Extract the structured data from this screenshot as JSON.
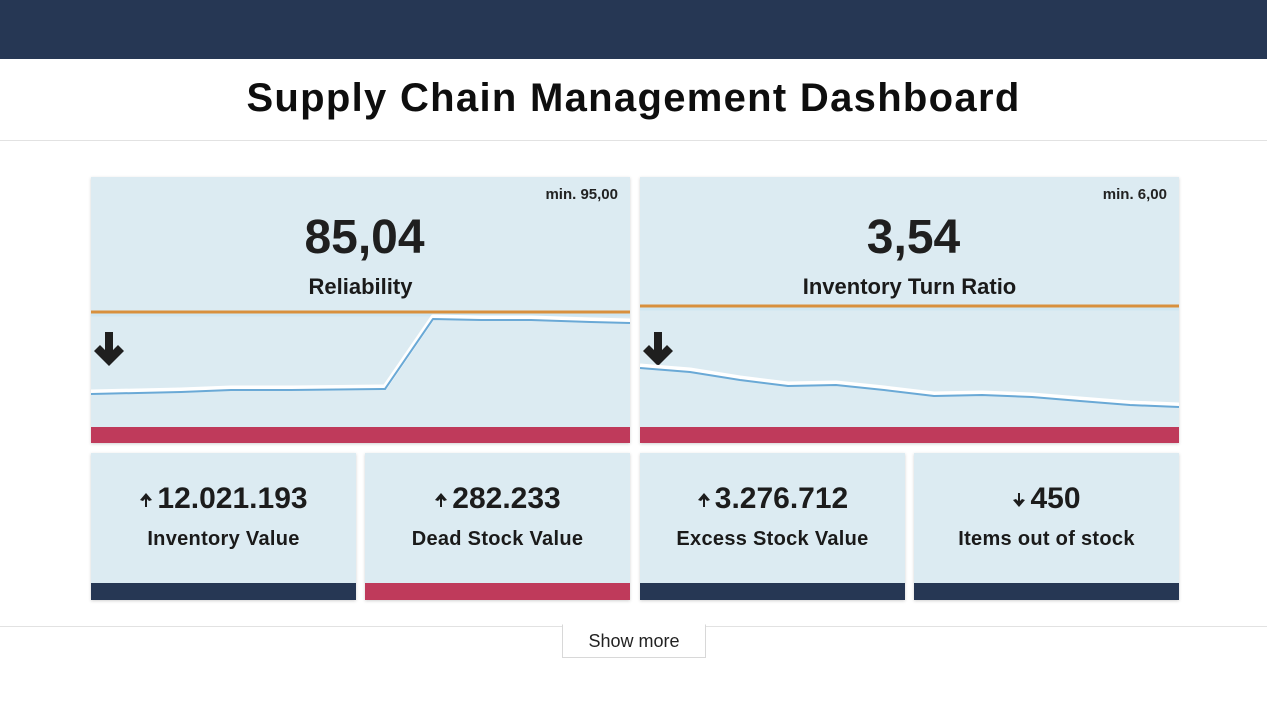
{
  "header": {
    "title": "Supply Chain Management Dashboard"
  },
  "colors": {
    "navy": "#263754",
    "card_bg": "#dcebf2",
    "alert_red": "#bf3a5b",
    "threshold_orange": "#d8903e",
    "line_blue": "#6aa9d6"
  },
  "kpis": [
    {
      "min_label": "min. 95,00",
      "direction_icon": "arrow-down-icon",
      "arrow": "🡇",
      "value": "85,04",
      "label": "Reliability",
      "status": "alert"
    },
    {
      "min_label": "min. 6,00",
      "direction_icon": "arrow-down-icon",
      "arrow": "🡇",
      "value": "3,54",
      "label": "Inventory Turn Ratio",
      "status": "alert"
    }
  ],
  "metrics": [
    {
      "direction_icon": "arrow-up-icon",
      "arrow": "🡅",
      "value": "12.021.193",
      "label": "Inventory Value",
      "status": "normal",
      "bar_color": "#263754"
    },
    {
      "direction_icon": "arrow-up-icon",
      "arrow": "🡅",
      "value": "282.233",
      "label": "Dead Stock Value",
      "status": "alert",
      "bar_color": "#bf3a5b"
    },
    {
      "direction_icon": "arrow-up-icon",
      "arrow": "🡅",
      "value": "3.276.712",
      "label": "Excess Stock Value",
      "status": "normal",
      "bar_color": "#263754"
    },
    {
      "direction_icon": "arrow-down-icon",
      "arrow": "🡇",
      "value": "450",
      "label": "Items out of stock",
      "status": "normal",
      "bar_color": "#263754"
    }
  ],
  "footer": {
    "show_more_label": "Show more"
  }
}
